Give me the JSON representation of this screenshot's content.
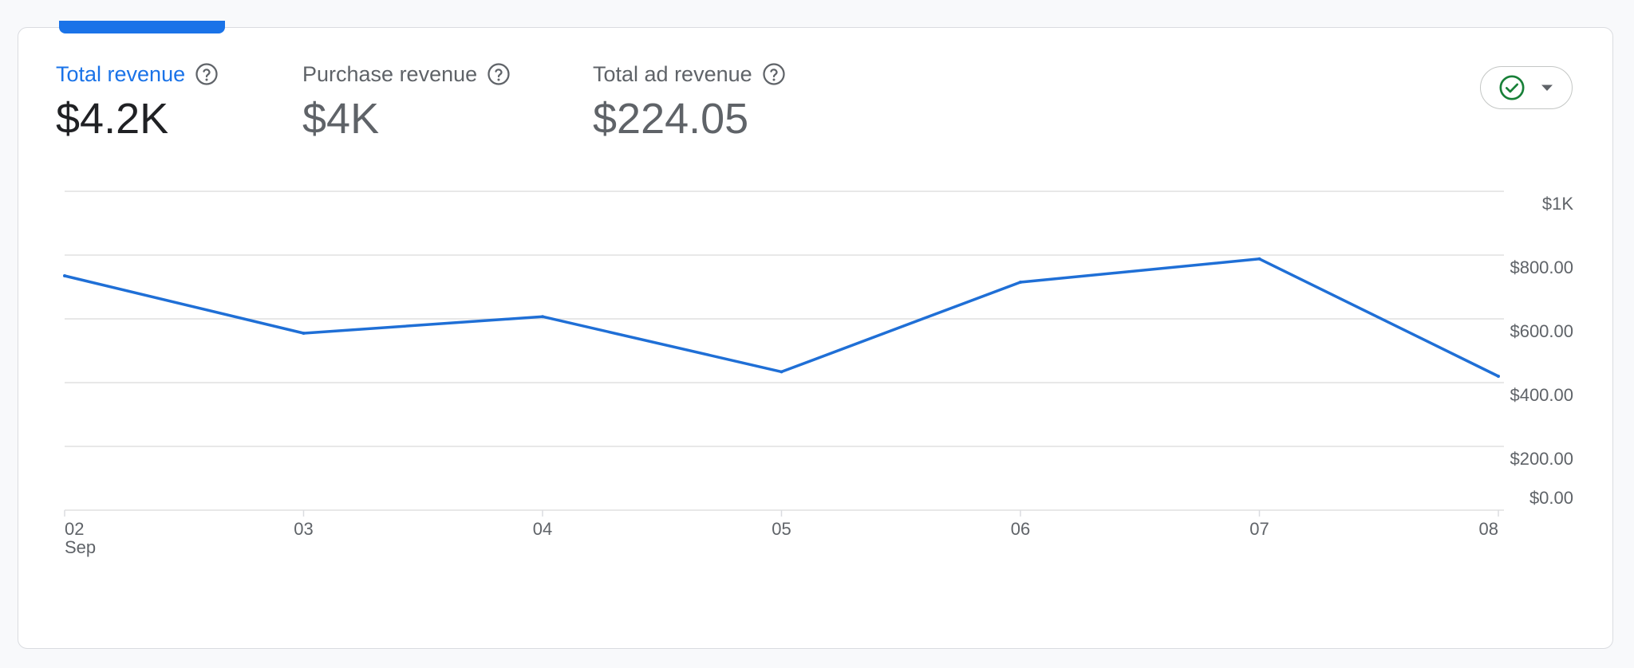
{
  "metrics": [
    {
      "label": "Total revenue",
      "value": "$4.2K",
      "active": true
    },
    {
      "label": "Purchase revenue",
      "value": "$4K",
      "active": false
    },
    {
      "label": "Total ad revenue",
      "value": "$224.05",
      "active": false
    }
  ],
  "icons": {
    "help": "help-circle-icon",
    "compare_status": "check-circle-icon",
    "compare_menu": "dropdown-arrow-icon"
  },
  "colors": {
    "accent": "#1a73e8",
    "line": "#1f6fd6",
    "check": "#188038"
  },
  "chart_data": {
    "type": "line",
    "x": [
      "02",
      "03",
      "04",
      "05",
      "06",
      "07",
      "08"
    ],
    "x_sublabel": "Sep",
    "series": [
      {
        "values": [
          735,
          555,
          607,
          434,
          715,
          788,
          420
        ]
      }
    ],
    "yticks": [
      {
        "value": 0,
        "label": "$0.00"
      },
      {
        "value": 200,
        "label": "$200.00"
      },
      {
        "value": 400,
        "label": "$400.00"
      },
      {
        "value": 600,
        "label": "$600.00"
      },
      {
        "value": 800,
        "label": "$800.00"
      },
      {
        "value": 1000,
        "label": "$1K"
      }
    ],
    "ylim": [
      0,
      1000
    ],
    "grid": true
  }
}
